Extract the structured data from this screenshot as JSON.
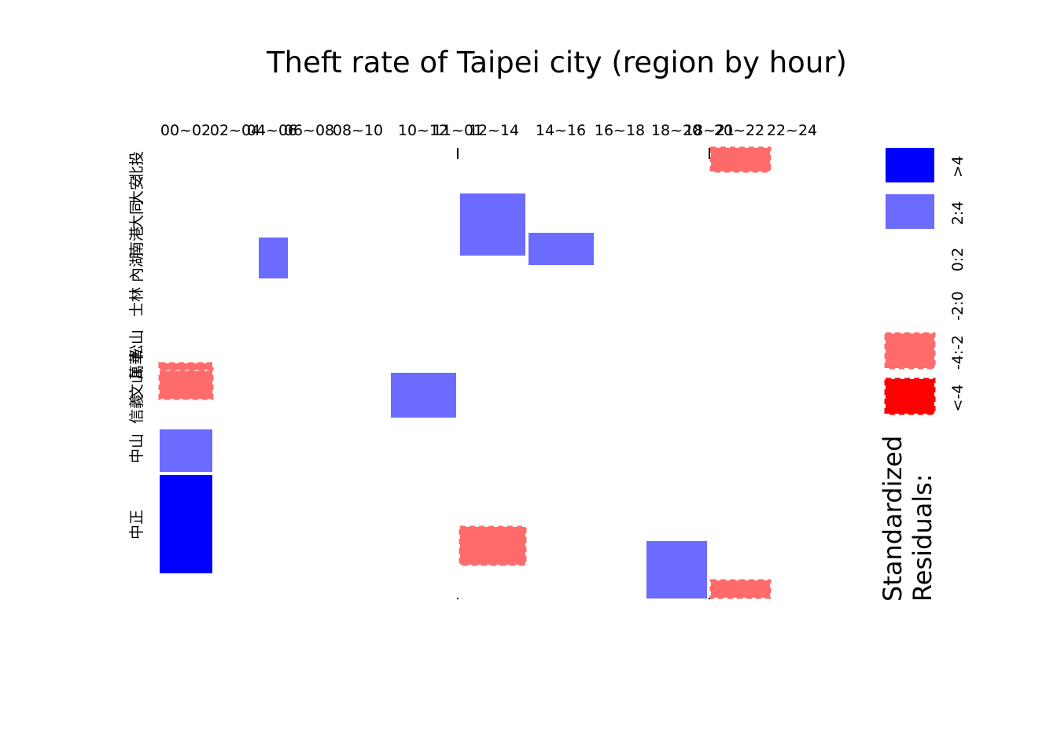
{
  "chart_data": {
    "type": "mosaic",
    "title": "Theft rate of Taipei city (region by hour)",
    "x_categories": [
      "00~02",
      "02~04",
      "04~06",
      "06~08",
      "08~10",
      "10~12",
      "11~01",
      "12~14",
      "14~16",
      "16~18",
      "18~20",
      "18~21",
      "20~22",
      "22~24"
    ],
    "y_categories": [
      "北投",
      "大安",
      "大同",
      "南港",
      "內湖",
      "士林",
      "松山",
      "萬華",
      "文山",
      "信義",
      "中山",
      "中正"
    ],
    "legend": {
      "title": "Standardized Residuals:",
      "entries": [
        {
          "label": ">4",
          "color": "#0000ff",
          "style": "solid"
        },
        {
          "label": "2:4",
          "color": "#6b6bff",
          "style": "solid"
        },
        {
          "label": "0:2",
          "color": "#ffffff",
          "style": "none"
        },
        {
          "label": "-2:0",
          "color": "#ffffff",
          "style": "none"
        },
        {
          "label": "-4:-2",
          "color": "#ff6b6b",
          "style": "dashed"
        },
        {
          "label": "<-4",
          "color": "#ff0000",
          "style": "dashed"
        }
      ]
    },
    "highlighted_cells": [
      {
        "hour": "00~02",
        "region": "中山",
        "residual": ">4"
      },
      {
        "hour": "00~02",
        "region": "信義",
        "residual": "2:4"
      },
      {
        "hour": "00~02",
        "region": "萬華",
        "residual": "-4:-2"
      },
      {
        "hour": "00~02",
        "region": "松山",
        "residual": "-4:-2"
      },
      {
        "hour": "04~06",
        "region": "南港",
        "residual": "2:4"
      },
      {
        "hour": "10~12",
        "region": "萬華",
        "residual": "2:4"
      },
      {
        "hour": "12~14",
        "region": "大安",
        "residual": "2:4"
      },
      {
        "hour": "12~14",
        "region": "中正",
        "residual": "-4:-2"
      },
      {
        "hour": "14~16",
        "region": "大同",
        "residual": "2:4"
      },
      {
        "hour": "18~20",
        "region": "中正",
        "residual": "2:4"
      },
      {
        "hour": "20~22",
        "region": "北投",
        "residual": "-4:-2"
      },
      {
        "hour": "20~22",
        "region": "中正",
        "residual": "-4:-2"
      }
    ]
  }
}
